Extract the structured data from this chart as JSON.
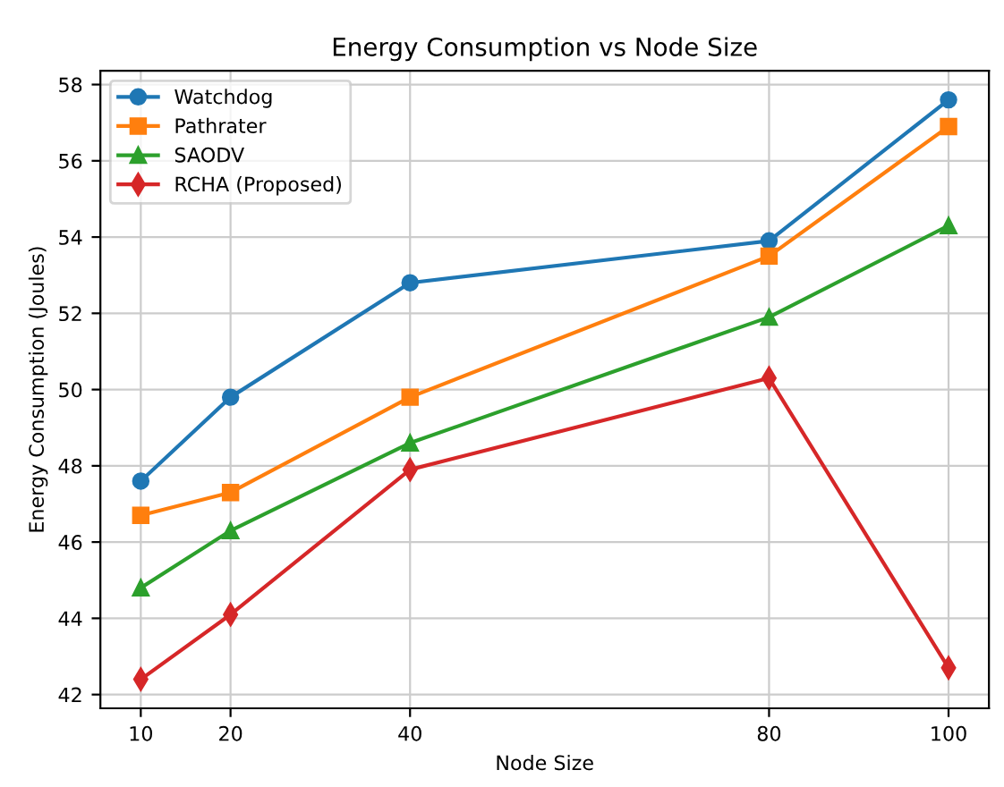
{
  "chart_data": {
    "type": "line",
    "title": "Energy Consumption vs Node Size",
    "xlabel": "Node Size",
    "ylabel": "Energy Consumption (Joules)",
    "x": [
      10,
      20,
      40,
      80,
      100
    ],
    "series": [
      {
        "name": "Watchdog",
        "color": "#1f77b4",
        "marker": "circle",
        "values": [
          47.6,
          49.8,
          52.8,
          53.9,
          57.6
        ]
      },
      {
        "name": "Pathrater",
        "color": "#ff7f0e",
        "marker": "square",
        "values": [
          46.7,
          47.3,
          49.8,
          53.5,
          56.9
        ]
      },
      {
        "name": "SAODV",
        "color": "#2ca02c",
        "marker": "triangle",
        "values": [
          44.8,
          46.3,
          48.6,
          51.9,
          54.3
        ]
      },
      {
        "name": "RCHA (Proposed)",
        "color": "#d62728",
        "marker": "diamond",
        "values": [
          42.4,
          44.1,
          47.9,
          50.3,
          42.7
        ]
      }
    ],
    "xlim": [
      5.5,
      104.5
    ],
    "xticks": [
      10,
      20,
      40,
      80,
      100
    ],
    "ylim": [
      41.64,
      58.36
    ],
    "yticks": [
      42,
      44,
      46,
      48,
      50,
      52,
      54,
      56,
      58
    ],
    "grid": true,
    "legend": "top left",
    "line_style": "solid"
  }
}
